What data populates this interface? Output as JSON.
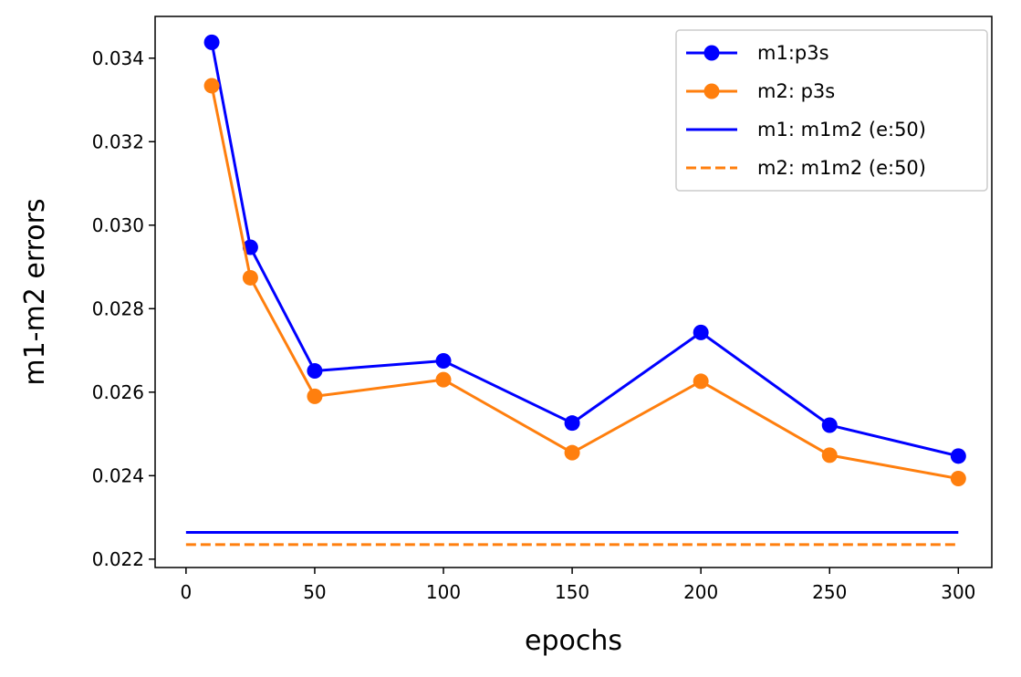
{
  "chart_data": {
    "type": "line",
    "title": "",
    "xlabel": "epochs",
    "ylabel": "m1-m2 errors",
    "xlim": [
      -12,
      313
    ],
    "ylim": [
      0.0218,
      0.035
    ],
    "xticks": [
      0,
      50,
      100,
      150,
      200,
      250,
      300
    ],
    "yticks": [
      0.022,
      0.024,
      0.026,
      0.028,
      0.03,
      0.032,
      0.034
    ],
    "ytick_labels": [
      "0.022",
      "0.024",
      "0.026",
      "0.028",
      "0.030",
      "0.032",
      "0.034"
    ],
    "grid": false,
    "legend_position": "top-right",
    "series": [
      {
        "name": "m1:p3s",
        "color": "#0000ff",
        "style": "solid",
        "marker": "circle",
        "x": [
          10,
          25,
          50,
          100,
          150,
          200,
          250,
          300
        ],
        "y": [
          0.03438,
          0.02947,
          0.02651,
          0.02675,
          0.02526,
          0.02743,
          0.02521,
          0.02447
        ]
      },
      {
        "name": "m2: p3s",
        "color": "#ff7f0e",
        "style": "solid",
        "marker": "circle",
        "x": [
          10,
          25,
          50,
          100,
          150,
          200,
          250,
          300
        ],
        "y": [
          0.03334,
          0.02874,
          0.0259,
          0.0263,
          0.02455,
          0.02626,
          0.02449,
          0.02393
        ]
      },
      {
        "name": "m1: m1m2 (e:50)",
        "color": "#0000ff",
        "style": "solid",
        "marker": "none",
        "x": [
          0,
          300
        ],
        "y": [
          0.02264,
          0.02264
        ]
      },
      {
        "name": "m2: m1m2 (e:50)",
        "color": "#ff7f0e",
        "style": "dashed",
        "marker": "none",
        "x": [
          0,
          300
        ],
        "y": [
          0.02235,
          0.02235
        ]
      }
    ]
  }
}
